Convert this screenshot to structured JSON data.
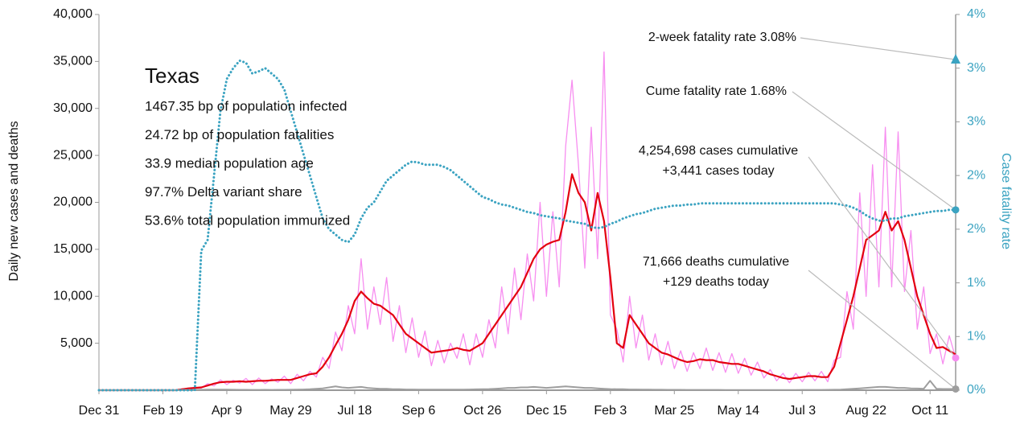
{
  "chart_data": {
    "type": "line",
    "y_label": "Daily new cases and deaths",
    "y2_label": "Case fatality rate",
    "x": [
      0,
      5,
      10,
      15,
      20,
      25,
      30,
      35,
      40,
      45,
      50,
      55,
      60,
      65,
      70,
      75,
      80,
      85,
      90,
      95,
      100,
      105,
      110,
      115,
      120,
      125,
      130,
      135,
      140,
      145,
      150,
      155,
      160,
      165,
      170,
      175,
      180,
      185,
      190,
      195,
      200,
      205,
      210,
      215,
      220,
      225,
      230,
      235,
      240,
      245,
      250,
      255,
      260,
      265,
      270,
      275,
      280,
      285,
      290,
      295,
      300,
      305,
      310,
      315,
      320,
      325,
      330,
      335,
      340,
      345,
      350,
      355,
      360,
      365,
      370,
      375,
      380,
      385,
      390,
      395,
      400,
      405,
      410,
      415,
      420,
      425,
      430,
      435,
      440,
      445,
      450,
      455,
      460,
      465,
      470,
      475,
      480,
      485,
      490,
      495,
      500,
      505,
      510,
      515,
      520,
      525,
      530,
      535,
      540,
      545,
      550,
      555,
      560,
      565,
      570,
      575,
      580,
      585,
      590,
      595,
      600,
      605,
      610,
      615,
      620,
      625,
      630,
      635,
      640,
      645,
      650,
      655,
      660,
      665,
      670
    ],
    "xlim": [
      0,
      670
    ],
    "xticks": [
      {
        "value": 0,
        "label": "Dec 31"
      },
      {
        "value": 50,
        "label": "Feb 19"
      },
      {
        "value": 100,
        "label": "Apr 9"
      },
      {
        "value": 150,
        "label": "May 29"
      },
      {
        "value": 200,
        "label": "Jul 18"
      },
      {
        "value": 250,
        "label": "Sep 6"
      },
      {
        "value": 300,
        "label": "Oct 26"
      },
      {
        "value": 350,
        "label": "Dec 15"
      },
      {
        "value": 400,
        "label": "Feb 3"
      },
      {
        "value": 450,
        "label": "Mar 25"
      },
      {
        "value": 500,
        "label": "May 14"
      },
      {
        "value": 550,
        "label": "Jul 3"
      },
      {
        "value": 600,
        "label": "Aug 22"
      },
      {
        "value": 650,
        "label": "Oct 11"
      }
    ],
    "ylim": [
      0,
      40000
    ],
    "yticks": [
      {
        "value": 5000,
        "label": "5,000"
      },
      {
        "value": 10000,
        "label": "10,000"
      },
      {
        "value": 15000,
        "label": "15,000"
      },
      {
        "value": 20000,
        "label": "20,000"
      },
      {
        "value": 25000,
        "label": "25,000"
      },
      {
        "value": 30000,
        "label": "30,000"
      },
      {
        "value": 35000,
        "label": "35,000"
      },
      {
        "value": 40000,
        "label": "40,000"
      }
    ],
    "y2lim": [
      0,
      3.5
    ],
    "y2ticks": [
      {
        "value": 0,
        "label": "0%"
      },
      {
        "value": 0.5,
        "label": "1%"
      },
      {
        "value": 1,
        "label": "1%"
      },
      {
        "value": 1.5,
        "label": "2%"
      },
      {
        "value": 2,
        "label": "2%"
      },
      {
        "value": 2.5,
        "label": "3%"
      },
      {
        "value": 3,
        "label": "3%"
      },
      {
        "value": 3.5,
        "label": "4%"
      }
    ],
    "grid": false,
    "series": [
      {
        "color": "#f78ef0",
        "width": 1.3,
        "values": [
          0,
          0,
          0,
          0,
          0,
          0,
          0,
          0,
          0,
          0,
          0,
          0,
          0,
          150,
          120,
          300,
          220,
          700,
          450,
          1100,
          600,
          1050,
          750,
          1250,
          600,
          1300,
          700,
          1200,
          850,
          1500,
          700,
          1700,
          1000,
          2000,
          1400,
          3500,
          2300,
          6200,
          4200,
          9000,
          6000,
          14000,
          6500,
          11000,
          7000,
          12000,
          5200,
          9000,
          4000,
          7700,
          3500,
          6300,
          2600,
          5300,
          2900,
          5000,
          3400,
          6000,
          2700,
          6000,
          3500,
          7500,
          4500,
          11000,
          6000,
          13000,
          7500,
          14500,
          9500,
          20000,
          10000,
          19000,
          11000,
          26000,
          33000,
          24000,
          13000,
          28000,
          14000,
          36000,
          8000,
          6500,
          3000,
          10000,
          4500,
          8000,
          3200,
          6000,
          2700,
          5200,
          2300,
          4200,
          2000,
          4000,
          2300,
          4500,
          2100,
          4000,
          1900,
          3900,
          1800,
          3400,
          1600,
          3000,
          1300,
          2200,
          1000,
          1800,
          800,
          1800,
          900,
          1900,
          1000,
          2000,
          900,
          3200,
          3500,
          10500,
          6500,
          21000,
          10000,
          24000,
          11000,
          28000,
          11000,
          27500,
          10500,
          17000,
          6500,
          11000,
          3900,
          6000,
          2800,
          5800,
          3441
        ]
      },
      {
        "color": "#e3000f",
        "width": 2.2,
        "values": [
          0,
          0,
          0,
          0,
          0,
          0,
          0,
          0,
          0,
          0,
          0,
          0,
          0,
          100,
          200,
          250,
          300,
          500,
          700,
          850,
          900,
          900,
          950,
          900,
          950,
          1000,
          1000,
          1050,
          1100,
          1100,
          1100,
          1300,
          1500,
          1700,
          1800,
          2500,
          3500,
          4800,
          6000,
          7500,
          9500,
          10500,
          9800,
          9200,
          9000,
          8500,
          8000,
          7000,
          6000,
          5500,
          5000,
          4500,
          4000,
          4100,
          4200,
          4300,
          4500,
          4300,
          4200,
          4600,
          5000,
          6000,
          7000,
          8000,
          9000,
          10000,
          11000,
          12500,
          14000,
          15000,
          15500,
          15800,
          16000,
          19000,
          23000,
          21000,
          20000,
          17000,
          21000,
          18000,
          12000,
          5000,
          4500,
          8000,
          7000,
          6000,
          5000,
          4500,
          4000,
          3800,
          3500,
          3200,
          3000,
          3100,
          3300,
          3200,
          3200,
          3000,
          2900,
          2800,
          2800,
          2600,
          2400,
          2200,
          2000,
          1700,
          1500,
          1300,
          1200,
          1300,
          1400,
          1500,
          1500,
          1400,
          1400,
          2500,
          5000,
          7500,
          10000,
          13000,
          16000,
          16500,
          17000,
          19000,
          17000,
          18000,
          16000,
          13000,
          10000,
          8000,
          6000,
          4500,
          4600,
          4200,
          3800
        ]
      },
      {
        "color": "#9e9e9e",
        "width": 2,
        "values": [
          0,
          0,
          0,
          0,
          0,
          0,
          0,
          0,
          0,
          0,
          0,
          0,
          0,
          20,
          30,
          40,
          50,
          60,
          60,
          70,
          60,
          50,
          40,
          40,
          30,
          30,
          40,
          30,
          40,
          40,
          50,
          60,
          80,
          100,
          150,
          200,
          300,
          400,
          300,
          250,
          300,
          350,
          250,
          200,
          150,
          150,
          100,
          100,
          80,
          80,
          70,
          60,
          60,
          60,
          60,
          60,
          70,
          70,
          80,
          90,
          100,
          120,
          150,
          200,
          250,
          250,
          300,
          300,
          350,
          300,
          250,
          300,
          350,
          400,
          350,
          300,
          250,
          250,
          200,
          150,
          120,
          100,
          100,
          80,
          80,
          60,
          60,
          50,
          50,
          40,
          40,
          40,
          30,
          30,
          30,
          30,
          30,
          30,
          20,
          20,
          20,
          20,
          20,
          20,
          20,
          20,
          20,
          20,
          20,
          20,
          30,
          30,
          30,
          30,
          40,
          50,
          60,
          100,
          150,
          200,
          250,
          300,
          350,
          350,
          300,
          250,
          250,
          200,
          180,
          150,
          1000,
          150,
          130,
          130,
          129
        ]
      },
      {
        "color": "#3ba3c1",
        "width": 3,
        "dotted": true,
        "axis": "y2",
        "values": [
          0,
          0,
          0,
          0,
          0,
          0,
          0,
          0,
          0,
          0,
          0,
          0,
          0,
          0,
          0,
          0,
          1.3,
          1.4,
          2.0,
          2.6,
          2.9,
          3.0,
          3.07,
          3.05,
          2.95,
          2.97,
          3.0,
          2.95,
          2.9,
          2.8,
          2.6,
          2.4,
          2.2,
          2.0,
          1.8,
          1.6,
          1.5,
          1.45,
          1.4,
          1.38,
          1.45,
          1.6,
          1.7,
          1.75,
          1.85,
          1.95,
          2.0,
          2.05,
          2.1,
          2.13,
          2.12,
          2.1,
          2.1,
          2.1,
          2.08,
          2.05,
          2.0,
          1.95,
          1.9,
          1.85,
          1.8,
          1.78,
          1.75,
          1.73,
          1.72,
          1.7,
          1.68,
          1.66,
          1.65,
          1.63,
          1.62,
          1.61,
          1.6,
          1.58,
          1.57,
          1.56,
          1.55,
          1.52,
          1.51,
          1.52,
          1.55,
          1.57,
          1.6,
          1.62,
          1.64,
          1.65,
          1.67,
          1.69,
          1.7,
          1.71,
          1.72,
          1.72,
          1.73,
          1.73,
          1.74,
          1.74,
          1.74,
          1.74,
          1.74,
          1.74,
          1.74,
          1.74,
          1.74,
          1.74,
          1.74,
          1.74,
          1.74,
          1.74,
          1.74,
          1.74,
          1.74,
          1.74,
          1.74,
          1.74,
          1.74,
          1.74,
          1.73,
          1.72,
          1.7,
          1.67,
          1.63,
          1.6,
          1.58,
          1.58,
          1.6,
          1.6,
          1.62,
          1.63,
          1.64,
          1.65,
          1.66,
          1.67,
          1.67,
          1.68,
          1.68
        ]
      }
    ],
    "info": {
      "title": "Texas",
      "lines": [
        "1467.35 bp of population infected",
        "24.72 bp of population fatalities",
        "33.9 median population age",
        "97.7% Delta variant share",
        "53.6% total population immunized"
      ]
    },
    "annotations": [
      {
        "text": [
          "2-week fatality rate 3.08%"
        ],
        "value": 3.08,
        "axis": "y2",
        "marker": "triangle",
        "color": "#3ba3c1"
      },
      {
        "text": [
          "Cume fatality rate 1.68%"
        ],
        "value": 1.68,
        "axis": "y2",
        "marker": "circle",
        "color": "#3ba3c1"
      },
      {
        "text": [
          "4,254,698 cases cumulative",
          "+3,441 cases today"
        ],
        "value": 3441,
        "marker": "circle",
        "color": "#f78ef0"
      },
      {
        "text": [
          "71,666 deaths cumulative",
          "+129 deaths today"
        ],
        "value": 129,
        "marker": "circle",
        "color": "#9e9e9e"
      }
    ]
  }
}
